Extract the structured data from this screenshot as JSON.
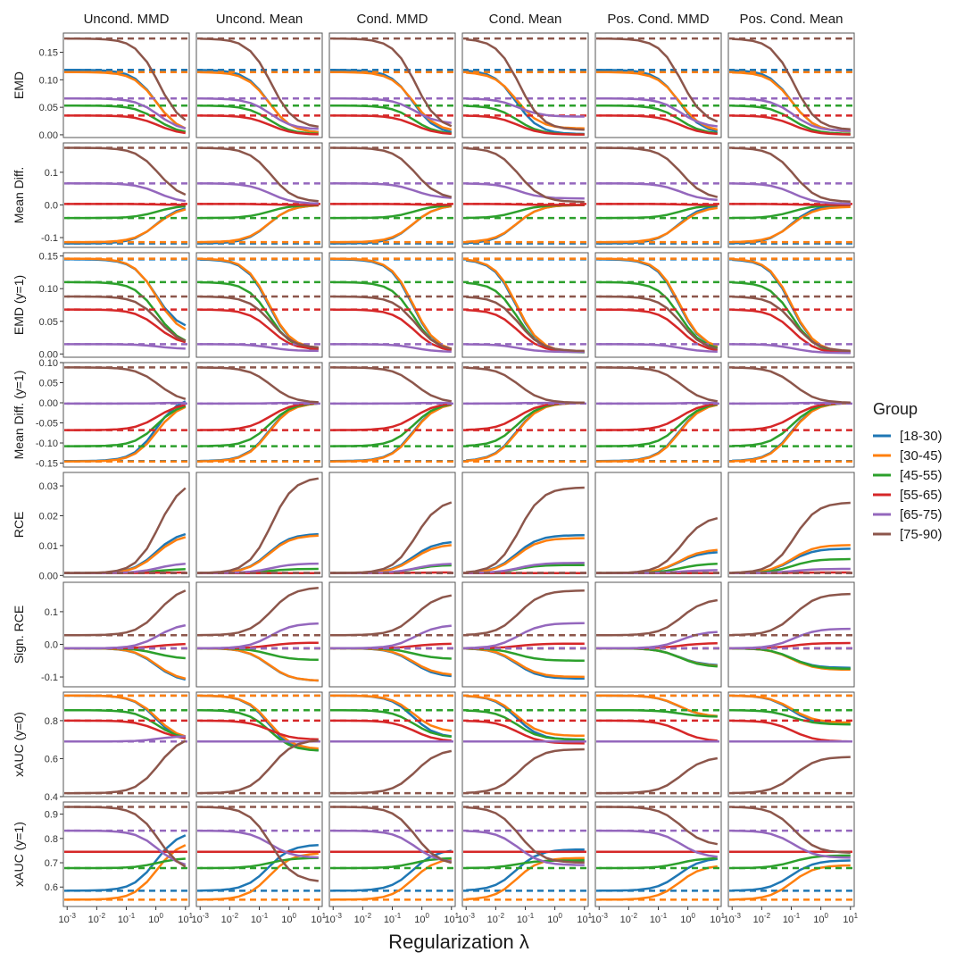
{
  "chart_data": {
    "type": "line",
    "xlabel": "Regularization λ",
    "xscale": "log",
    "xlim": [
      0.001,
      10
    ],
    "x": [
      0.001,
      0.002,
      0.005,
      0.01,
      0.02,
      0.05,
      0.1,
      0.2,
      0.5,
      1,
      2,
      5,
      10
    ],
    "x_tick_labels": [
      {
        "base": "10",
        "exp": "-3",
        "value": 0.001
      },
      {
        "base": "10",
        "exp": "-2",
        "value": 0.01
      },
      {
        "base": "10",
        "exp": "-1",
        "value": 0.1
      },
      {
        "base": "10",
        "exp": "0",
        "value": 1
      },
      {
        "base": "10",
        "exp": "1",
        "value": 10
      }
    ],
    "columns": [
      "Uncond. MMD",
      "Uncond. Mean",
      "Cond. MMD",
      "Cond. Mean",
      "Pos. Cond. MMD",
      "Pos. Cond. Mean"
    ],
    "legend": {
      "title": "Group",
      "position": "right",
      "entries": [
        {
          "label": "[18-30)",
          "color": "#1f77b4"
        },
        {
          "label": "[30-45)",
          "color": "#ff7f0e"
        },
        {
          "label": "[45-55)",
          "color": "#2ca02c"
        },
        {
          "label": "[55-65)",
          "color": "#d62728"
        },
        {
          "label": "[65-75)",
          "color": "#9467bd"
        },
        {
          "label": "[75-90)",
          "color": "#8c564b"
        }
      ]
    },
    "line_style": {
      "model": "solid",
      "baseline": "dashed"
    },
    "rows": [
      {
        "ylabel": "EMD",
        "ylim": [
          -0.005,
          0.185
        ],
        "yticks": [
          0,
          0.05,
          0.1,
          0.15
        ],
        "ytick_labels": [
          "0.00",
          "0.05",
          "0.10",
          "0.15"
        ],
        "baselines": [
          0.118,
          0.114,
          0.053,
          0.035,
          0.066,
          0.175
        ],
        "end_fraction": [
          [
            0.03,
            0.03,
            0.01,
            0.01,
            0.02,
            0.05
          ],
          [
            0.03,
            0.03,
            0.05,
            0.1,
            0.05,
            0.05
          ],
          [
            0.03,
            0.02,
            0.01,
            0.01,
            0.02,
            0.03
          ],
          [
            0.01,
            0.01,
            0.01,
            0.01,
            0.01,
            0.01
          ],
          [
            0.1,
            0.15,
            0.3,
            0.5,
            0.2,
            0.1
          ],
          [
            0.07,
            0.07,
            0.05,
            0.05,
            0.1,
            0.05
          ]
        ]
      },
      {
        "ylabel": "Mean Diff.",
        "ylim": [
          -0.13,
          0.19
        ],
        "yticks": [
          -0.1,
          0,
          0.1
        ],
        "ytick_labels": [
          "-0.1",
          "0.0",
          "0.1"
        ],
        "baselines": [
          -0.118,
          -0.114,
          -0.04,
          0.003,
          0.066,
          0.175
        ],
        "end_fraction": [
          [
            0.02,
            0.0,
            0.0,
            0.0,
            0.0,
            0.0
          ],
          [
            0.05,
            0.0,
            0.0,
            0.0,
            0.05,
            0.05
          ],
          [
            0.02,
            0.0,
            0.0,
            0.0,
            0.0,
            0.0
          ],
          [
            0.0,
            0.0,
            0.0,
            0.0,
            0.0,
            0.0
          ],
          [
            0.1,
            0.05,
            0.3,
            0.3,
            0.2,
            0.05
          ],
          [
            0.1,
            0.05,
            0.1,
            0.05,
            0.1,
            0.05
          ]
        ]
      },
      {
        "ylabel": "EMD (y=1)",
        "ylim": [
          -0.005,
          0.155
        ],
        "yticks": [
          0,
          0.05,
          0.1,
          0.15
        ],
        "ytick_labels": [
          "0.00",
          "0.05",
          "0.10",
          "0.15"
        ],
        "baselines": [
          0.145,
          0.146,
          0.11,
          0.068,
          0.015,
          0.088
        ],
        "end_fraction": [
          [
            0.25,
            0.05,
            0.02,
            0.02,
            0.05,
            0.02
          ],
          [
            0.2,
            0.05,
            0.02,
            0.02,
            0.05,
            0.02
          ],
          [
            0.12,
            0.05,
            0.02,
            0.02,
            0.05,
            0.02
          ],
          [
            0.2,
            0.1,
            0.05,
            0.05,
            0.05,
            0.02
          ],
          [
            0.5,
            0.3,
            0.2,
            0.2,
            0.2,
            0.1
          ],
          [
            0.15,
            0.1,
            0.05,
            0.05,
            0.05,
            0.05
          ]
        ]
      },
      {
        "ylabel": "Mean Diff. (y=1)",
        "ylim": [
          -0.16,
          0.1
        ],
        "yticks": [
          -0.15,
          -0.1,
          -0.05,
          0,
          0.05,
          0.1
        ],
        "ytick_labels": [
          "-0.15",
          "-0.10",
          "-0.05",
          "0.00",
          "0.05",
          "0.10"
        ],
        "baselines": [
          -0.145,
          -0.146,
          -0.108,
          -0.068,
          -0.002,
          0.088
        ],
        "end_fraction": [
          [
            -0.1,
            0.0,
            0.0,
            0.0,
            0.0,
            0.0
          ],
          [
            0.0,
            0.0,
            0.0,
            0.0,
            0.0,
            0.0
          ],
          [
            0.0,
            0.0,
            0.0,
            0.0,
            0.0,
            0.0
          ],
          [
            0.0,
            0.0,
            0.0,
            0.0,
            0.0,
            0.0
          ],
          [
            0.0,
            0.0,
            0.0,
            0.0,
            0.0,
            0.0
          ],
          [
            0.02,
            0.0,
            0.0,
            0.0,
            0.0,
            0.0
          ]
        ]
      },
      {
        "ylabel": "RCE",
        "ylim": [
          -0.0005,
          0.0345
        ],
        "yticks": [
          0,
          0.01,
          0.02,
          0.03
        ],
        "ytick_labels": [
          "0.00",
          "0.01",
          "0.02",
          "0.03"
        ],
        "baselines": [
          0.0008,
          0.0008,
          0.0008,
          0.0008,
          0.0008,
          0.0008
        ],
        "end_values": [
          [
            0.0148,
            0.014,
            0.0115,
            0.0135,
            0.008,
            0.009
          ],
          [
            0.0138,
            0.0135,
            0.0105,
            0.0125,
            0.0088,
            0.0102
          ],
          [
            0.0022,
            0.0022,
            0.0035,
            0.0035,
            0.004,
            0.0055
          ],
          [
            0.001,
            0.0008,
            0.001,
            0.0008,
            0.0008,
            0.001
          ],
          [
            0.0042,
            0.004,
            0.004,
            0.0042,
            0.0018,
            0.0022
          ],
          [
            0.032,
            0.033,
            0.0255,
            0.0295,
            0.02,
            0.0245
          ]
        ]
      },
      {
        "ylabel": "Sign. RCE",
        "ylim": [
          -0.13,
          0.19
        ],
        "yticks": [
          -0.1,
          0,
          0.1
        ],
        "ytick_labels": [
          "-0.1",
          "0.0",
          "0.1"
        ],
        "baselines": [
          -0.012,
          -0.012,
          -0.012,
          -0.012,
          -0.012,
          0.028
        ],
        "end_values": [
          [
            -0.115,
            -0.112,
            -0.1,
            -0.105,
            -0.065,
            -0.072
          ],
          [
            -0.112,
            -0.112,
            -0.095,
            -0.1,
            -0.068,
            -0.078
          ],
          [
            -0.045,
            -0.048,
            -0.045,
            -0.05,
            -0.07,
            -0.075
          ],
          [
            0.002,
            0.005,
            0.002,
            0.002,
            0.004,
            0.004
          ],
          [
            0.065,
            0.065,
            0.06,
            0.065,
            0.04,
            0.048
          ],
          [
            0.178,
            0.175,
            0.155,
            0.165,
            0.14,
            0.155
          ]
        ]
      },
      {
        "ylabel": "xAUC (y=0)",
        "ylim": [
          0.4,
          0.95
        ],
        "yticks": [
          0.4,
          0.6,
          0.8
        ],
        "ytick_labels": [
          "0.4",
          "0.6",
          "0.8"
        ],
        "baselines": [
          0.932,
          0.932,
          0.855,
          0.8,
          0.69,
          0.418
        ],
        "end_values": [
          [
            0.69,
            0.64,
            0.71,
            0.7,
            0.82,
            0.78
          ],
          [
            0.7,
            0.65,
            0.74,
            0.72,
            0.82,
            0.79
          ],
          [
            0.7,
            0.64,
            0.71,
            0.7,
            0.82,
            0.78
          ],
          [
            0.7,
            0.7,
            0.69,
            0.68,
            0.69,
            0.69
          ],
          [
            0.72,
            0.69,
            0.69,
            0.69,
            0.69,
            0.69
          ],
          [
            0.72,
            0.7,
            0.65,
            0.65,
            0.61,
            0.61
          ]
        ]
      },
      {
        "ylabel": "xAUC (y=1)",
        "ylim": [
          0.52,
          0.95
        ],
        "yticks": [
          0.6,
          0.7,
          0.8,
          0.9
        ],
        "ytick_labels": [
          "0.6",
          "0.7",
          "0.8",
          "0.9"
        ],
        "baselines": [
          0.585,
          0.548,
          0.678,
          0.745,
          0.832,
          0.93
        ],
        "end_values": [
          [
            0.83,
            0.775,
            0.755,
            0.755,
            0.72,
            0.71
          ],
          [
            0.79,
            0.74,
            0.72,
            0.72,
            0.69,
            0.69
          ],
          [
            0.72,
            0.72,
            0.72,
            0.71,
            0.72,
            0.73
          ],
          [
            0.745,
            0.745,
            0.745,
            0.745,
            0.745,
            0.745
          ],
          [
            0.68,
            0.72,
            0.7,
            0.69,
            0.72,
            0.72
          ],
          [
            0.66,
            0.62,
            0.69,
            0.7,
            0.77,
            0.74
          ]
        ]
      }
    ],
    "column_midpoints": [
      1.0,
      0.2,
      0.5,
      0.05,
      0.5,
      0.1
    ]
  }
}
